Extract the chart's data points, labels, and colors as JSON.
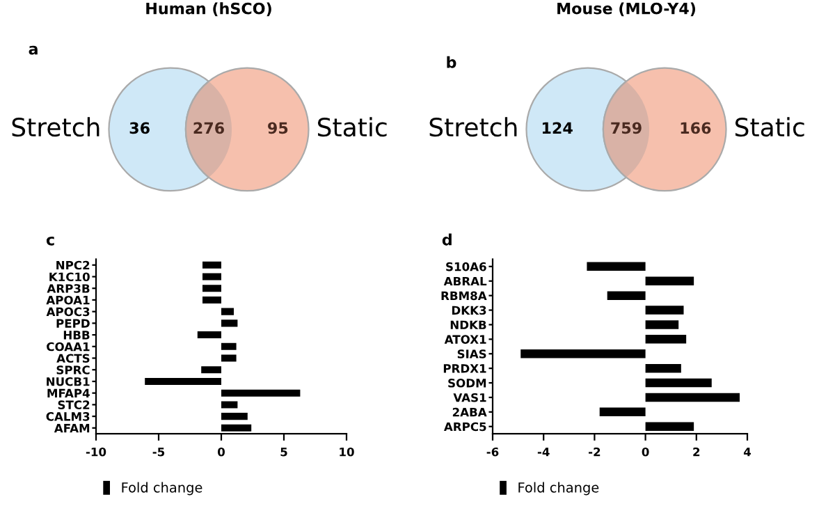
{
  "chart_data": [
    {
      "type": "other",
      "title": "Human (hSCO)",
      "annotations": [
        "a"
      ],
      "categories": [
        "Stretch",
        null,
        "Static"
      ],
      "values": [
        36,
        276,
        95
      ],
      "data_labels": true,
      "colors": [
        "#cfe8f7",
        "#d9b2a6",
        "#f6c0ad"
      ]
    },
    {
      "type": "other",
      "title": "Mouse (MLO-Y4)",
      "annotations": [
        "b"
      ],
      "categories": [
        "Stretch",
        null,
        "Static"
      ],
      "values": [
        124,
        759,
        166
      ],
      "data_labels": true,
      "colors": [
        "#cfe8f7",
        "#d9b2a6",
        "#f6c0ad"
      ]
    },
    {
      "type": "bar",
      "orientation": "horizontal",
      "annotations": [
        "c"
      ],
      "categories": [
        "NPC2",
        "K1C10",
        "ARP3B",
        "APOA1",
        "APOC3",
        "PEPD",
        "HBB",
        "COAA1",
        "ACTS",
        "SPRC",
        "NUCB1",
        "MFAP4",
        "STC2",
        "CALM3",
        "AFAM"
      ],
      "series": [
        {
          "name": "Fold change",
          "color": "#000000",
          "values": [
            -1.5,
            -1.5,
            -1.5,
            -1.5,
            1.0,
            1.3,
            -1.9,
            1.2,
            1.2,
            -1.6,
            -6.1,
            6.3,
            1.3,
            2.1,
            2.4
          ]
        }
      ],
      "xlim": [
        -10,
        10
      ],
      "xticks": [
        -10,
        -5,
        0,
        5,
        10
      ],
      "legend": "bottom",
      "grid": false
    },
    {
      "type": "bar",
      "orientation": "horizontal",
      "annotations": [
        "d"
      ],
      "categories": [
        "S10A6",
        "ABRAL",
        "RBM8A",
        "DKK3",
        "NDKB",
        "ATOX1",
        "SIAS",
        "PRDX1",
        "SODM",
        "VAS1",
        "2ABA",
        "ARPC5"
      ],
      "series": [
        {
          "name": "Fold change",
          "color": "#000000",
          "values": [
            -2.3,
            1.9,
            -1.5,
            1.5,
            1.3,
            1.6,
            -4.9,
            1.4,
            2.6,
            3.7,
            -1.8,
            1.9
          ]
        }
      ],
      "xlim": [
        -6,
        4
      ],
      "xticks": [
        -6,
        -4,
        -2,
        0,
        2,
        4
      ],
      "legend": "bottom",
      "grid": false
    }
  ]
}
